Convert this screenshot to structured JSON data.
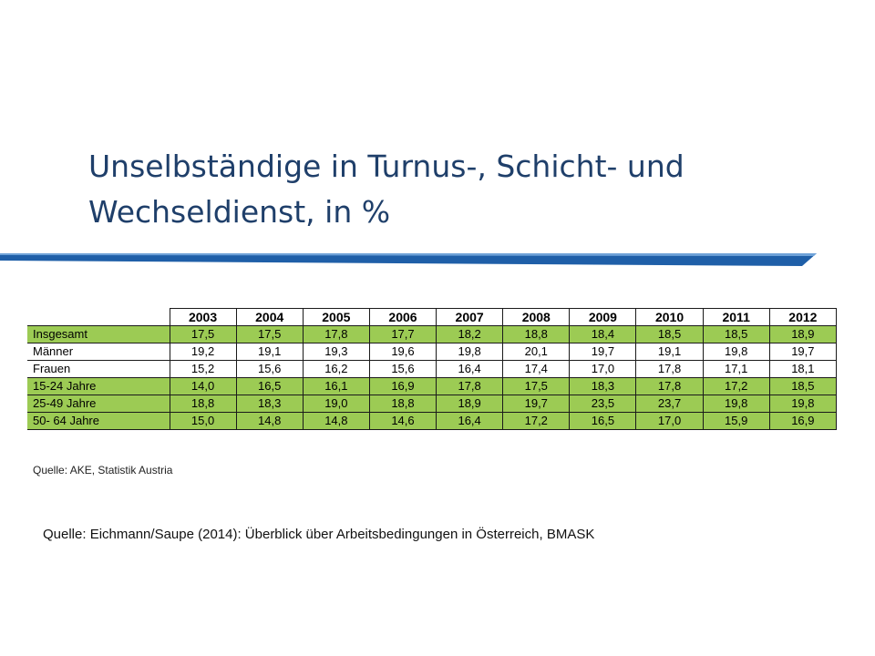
{
  "slide": {
    "title_line1": "Unselbständige in Turnus-, Schicht- und",
    "title_line2": "Wechseldienst, in %",
    "accent_color": "#1f5fa8"
  },
  "table": {
    "columns": [
      "2003",
      "2004",
      "2005",
      "2006",
      "2007",
      "2008",
      "2009",
      "2010",
      "2011",
      "2012"
    ],
    "rows": [
      {
        "label": "Insgesamt",
        "values": [
          "17,5",
          "17,5",
          "17,8",
          "17,7",
          "18,2",
          "18,8",
          "18,4",
          "18,5",
          "18,5",
          "18,9"
        ]
      },
      {
        "label": "Männer",
        "values": [
          "19,2",
          "19,1",
          "19,3",
          "19,6",
          "19,8",
          "20,1",
          "19,7",
          "19,1",
          "19,8",
          "19,7"
        ]
      },
      {
        "label": "Frauen",
        "values": [
          "15,2",
          "15,6",
          "16,2",
          "15,6",
          "16,4",
          "17,4",
          "17,0",
          "17,8",
          "17,1",
          "18,1"
        ]
      },
      {
        "label": "15-24 Jahre",
        "values": [
          "14,0",
          "16,5",
          "16,1",
          "16,9",
          "17,8",
          "17,5",
          "18,3",
          "17,8",
          "17,2",
          "18,5"
        ]
      },
      {
        "label": "25-49 Jahre",
        "values": [
          "18,8",
          "18,3",
          "19,0",
          "18,8",
          "18,9",
          "19,7",
          "23,5",
          "23,7",
          "19,8",
          "19,8"
        ]
      },
      {
        "label": "50- 64 Jahre",
        "values": [
          "15,0",
          "14,8",
          "14,8",
          "14,6",
          "16,4",
          "17,2",
          "16,5",
          "17,0",
          "15,9",
          "16,9"
        ]
      }
    ],
    "row_highlight": [
      "green",
      "white",
      "white",
      "green",
      "green",
      "green"
    ],
    "highlight_color": "#9ccb54",
    "source": "Quelle: AKE, Statistik Austria"
  },
  "footer": {
    "source": "Quelle: Eichmann/Saupe (2014): Überblick über Arbeitsbedingungen in Österreich, BMASK"
  }
}
